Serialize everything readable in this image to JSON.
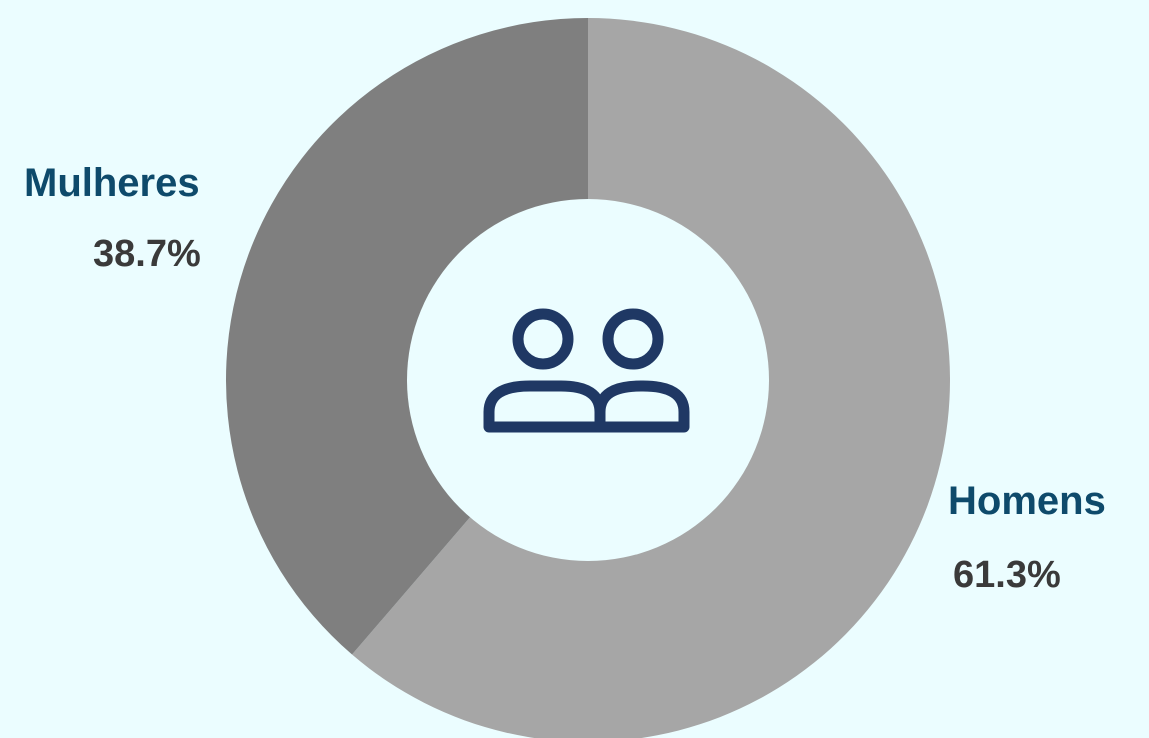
{
  "chart_data": {
    "type": "pie",
    "categories": [
      "Homens",
      "Mulheres"
    ],
    "values": [
      61.3,
      38.7
    ],
    "value_labels": [
      "61.3%",
      "38.7%"
    ],
    "colors": [
      "#a6a6a6",
      "#7f7f7f"
    ],
    "donut": true,
    "title": "",
    "legend": "none"
  },
  "style": {
    "background": "#ebfdff",
    "label_color": "#0e4a6b",
    "value_color": "#3a3a3a",
    "hole_color": "#ebfdff",
    "icon_color": "#1f3864"
  },
  "center_icon": "people-icon"
}
